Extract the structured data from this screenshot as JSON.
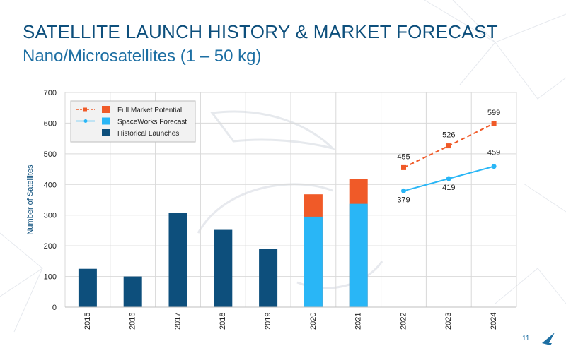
{
  "slide": {
    "title": "SATELLITE LAUNCH HISTORY & MARKET FORECAST",
    "subtitle": "Nano/Microsatellites (1 – 50 kg)",
    "page_number": "11"
  },
  "colors": {
    "historical": "#0d4f7c",
    "forecast": "#29b6f6",
    "market": "#f05a28",
    "grid": "#d9d9d9",
    "axis_text": "#222222",
    "ylabel": "#0d4f7c"
  },
  "chart_data": {
    "type": "bar",
    "xlabel": "",
    "ylabel": "Number of Satellites",
    "ylim": [
      0,
      700
    ],
    "yticks": [
      0,
      100,
      200,
      300,
      400,
      500,
      600,
      700
    ],
    "categories": [
      "2015",
      "2016",
      "2017",
      "2018",
      "2019",
      "2020",
      "2021",
      "2022",
      "2023",
      "2024"
    ],
    "grid": true,
    "legend_position": "top-left",
    "legend": [
      {
        "label": "Full Market Potential",
        "key": "market"
      },
      {
        "label": "SpaceWorks Forecast",
        "key": "forecast"
      },
      {
        "label": "Historical Launches",
        "key": "historical"
      }
    ],
    "bars": {
      "historical": [
        125,
        100,
        307,
        252,
        189,
        null,
        null,
        null,
        null,
        null
      ],
      "forecast": [
        null,
        null,
        null,
        null,
        null,
        295,
        337,
        null,
        null,
        null
      ],
      "market": [
        null,
        null,
        null,
        null,
        null,
        368,
        418,
        null,
        null,
        null
      ]
    },
    "lines": [
      {
        "name": "Full Market Potential",
        "key": "market",
        "style": "dashed",
        "marker": "square",
        "x": [
          "2022",
          "2023",
          "2024"
        ],
        "values": [
          455,
          526,
          599
        ],
        "labels": [
          "455",
          "526",
          "599"
        ]
      },
      {
        "name": "SpaceWorks Forecast",
        "key": "forecast",
        "style": "solid",
        "marker": "circle",
        "x": [
          "2022",
          "2023",
          "2024"
        ],
        "values": [
          379,
          419,
          459
        ],
        "labels": [
          "379",
          "419",
          "459"
        ]
      }
    ]
  }
}
